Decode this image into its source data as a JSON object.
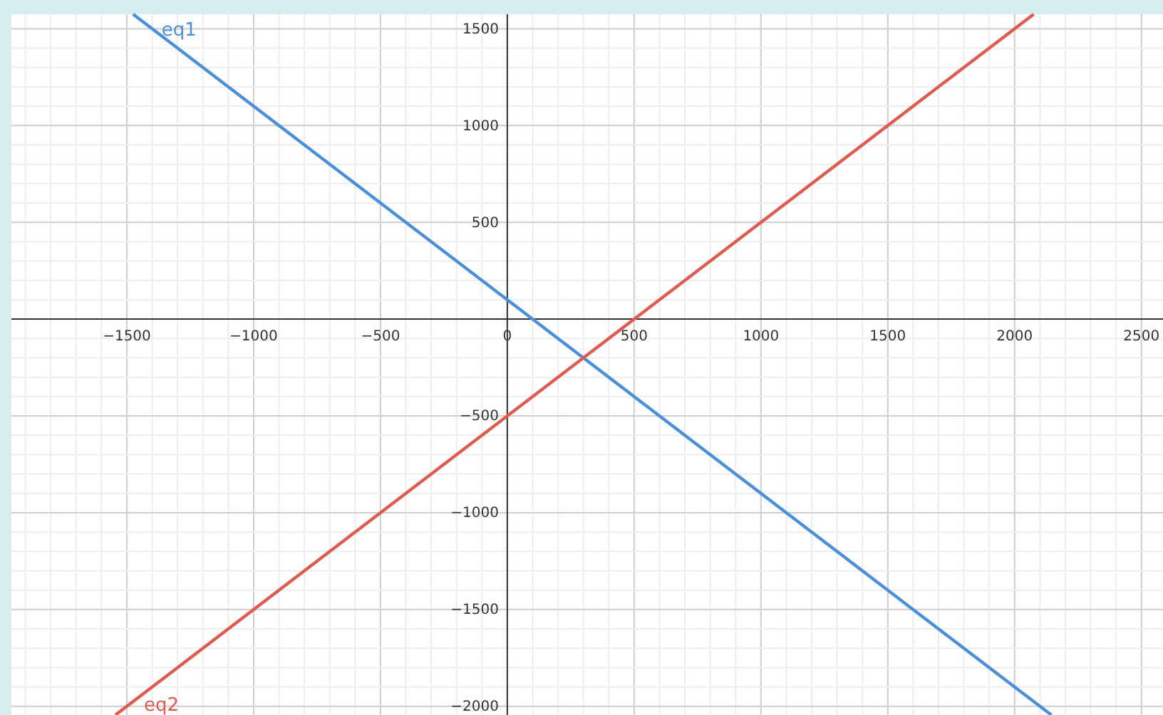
{
  "chart_data": {
    "type": "line",
    "xlim": [
      -1955,
      2585
    ],
    "ylim": [
      -2045,
      1575
    ],
    "xticks": [
      -1500,
      -1000,
      -500,
      0,
      500,
      1000,
      1500,
      2000,
      2500
    ],
    "yticks": [
      -2000,
      -1500,
      -1000,
      -500,
      {
        "value": 0,
        "label": null
      },
      500,
      1000,
      1500
    ],
    "grid": true,
    "marker": "none",
    "line_style": "solid",
    "legend": false,
    "series": [
      {
        "name": "eq1",
        "color": "#4a90d9",
        "x": [
          -1475,
          2145
        ],
        "values": [
          1575,
          -2045
        ]
      },
      {
        "name": "eq2",
        "color": "#e05a50",
        "x": [
          -1545,
          2075
        ],
        "values": [
          -2045,
          1575
        ]
      }
    ]
  }
}
